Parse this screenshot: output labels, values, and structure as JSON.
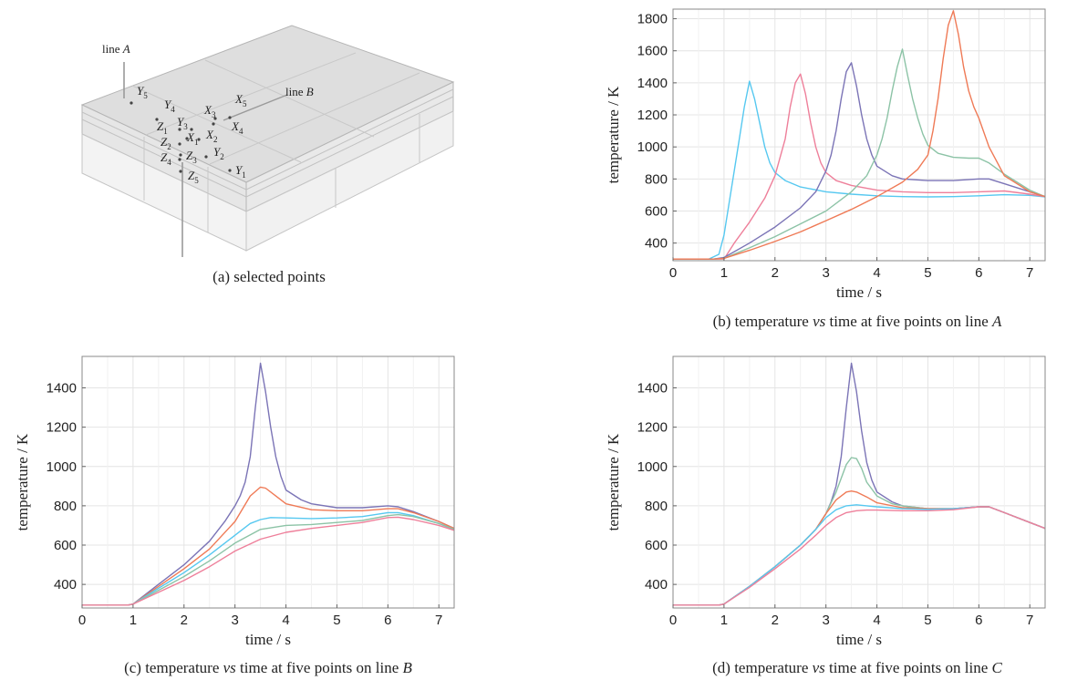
{
  "colors": {
    "cyan": "#56c8f0",
    "pink": "#ee7f9a",
    "purple": "#7b74b6",
    "green": "#8cc3a6",
    "orange": "#ef7a56",
    "grid": "#e4e4e4",
    "frame": "#888888"
  },
  "panel_a": {
    "caption": "(a)  selected points",
    "line_a_label": "line A",
    "line_b_label": "line B",
    "points": [
      {
        "letter": "Y",
        "sub": "5"
      },
      {
        "letter": "Y",
        "sub": "4"
      },
      {
        "letter": "X",
        "sub": "3"
      },
      {
        "letter": "X",
        "sub": "5"
      },
      {
        "letter": "Z",
        "sub": "1"
      },
      {
        "letter": "Y",
        "sub": "3"
      },
      {
        "letter": "X",
        "sub": "4"
      },
      {
        "letter": "X",
        "sub": "1"
      },
      {
        "letter": "X",
        "sub": "2"
      },
      {
        "letter": "Z",
        "sub": "2"
      },
      {
        "letter": "Y",
        "sub": "2"
      },
      {
        "letter": "Z",
        "sub": "4"
      },
      {
        "letter": "Z",
        "sub": "3"
      },
      {
        "letter": "Y",
        "sub": "1"
      },
      {
        "letter": "Z",
        "sub": "5"
      }
    ]
  },
  "chart_data": [
    {
      "id": "b",
      "type": "line",
      "caption_pre": "(b) temperature ",
      "caption_vs": "vs",
      "caption_mid": " time at five points on line ",
      "caption_line": "A",
      "xlabel": "time / s",
      "ylabel": "temperature / K",
      "xlim": [
        0,
        7.3
      ],
      "ylim": [
        290,
        1860
      ],
      "xticks": [
        0,
        1,
        2,
        3,
        4,
        5,
        6,
        7
      ],
      "yticks": [
        400,
        600,
        800,
        1000,
        1200,
        1400,
        1600,
        1800
      ],
      "grid": true,
      "series": [
        {
          "color": "cyan",
          "x": [
            0,
            0.7,
            0.9,
            1.0,
            1.1,
            1.2,
            1.3,
            1.4,
            1.5,
            1.6,
            1.7,
            1.8,
            1.9,
            2.0,
            2.2,
            2.5,
            3.0,
            3.5,
            4.0,
            4.5,
            5.0,
            5.5,
            6.0,
            6.5,
            7.0,
            7.3
          ],
          "y": [
            300,
            300,
            330,
            450,
            650,
            850,
            1050,
            1250,
            1410,
            1300,
            1150,
            1000,
            900,
            840,
            790,
            750,
            720,
            705,
            695,
            690,
            688,
            690,
            695,
            702,
            698,
            688
          ]
        },
        {
          "color": "pink",
          "x": [
            0,
            1.0,
            1.2,
            1.5,
            1.8,
            2.0,
            2.2,
            2.3,
            2.4,
            2.5,
            2.6,
            2.7,
            2.8,
            2.9,
            3.0,
            3.2,
            3.5,
            4.0,
            4.5,
            5.0,
            5.5,
            6.0,
            6.5,
            7.0,
            7.3
          ],
          "y": [
            300,
            300,
            400,
            530,
            680,
            820,
            1050,
            1250,
            1400,
            1455,
            1330,
            1150,
            1000,
            900,
            840,
            790,
            760,
            730,
            720,
            715,
            715,
            720,
            725,
            705,
            690
          ]
        },
        {
          "color": "purple",
          "x": [
            0,
            0.8,
            1.0,
            1.5,
            2.0,
            2.5,
            2.8,
            3.0,
            3.1,
            3.2,
            3.3,
            3.4,
            3.5,
            3.6,
            3.7,
            3.8,
            3.9,
            4.0,
            4.3,
            4.5,
            5.0,
            5.5,
            6.0,
            6.2,
            6.5,
            7.0,
            7.3
          ],
          "y": [
            300,
            300,
            310,
            400,
            500,
            620,
            720,
            850,
            950,
            1100,
            1300,
            1470,
            1525,
            1380,
            1200,
            1050,
            950,
            880,
            820,
            800,
            790,
            790,
            800,
            800,
            770,
            720,
            690
          ]
        },
        {
          "color": "green",
          "x": [
            0,
            0.8,
            1.0,
            1.5,
            2.0,
            2.5,
            3.0,
            3.5,
            3.8,
            4.0,
            4.1,
            4.2,
            4.3,
            4.4,
            4.5,
            4.6,
            4.7,
            4.8,
            4.9,
            5.0,
            5.2,
            5.5,
            5.8,
            6.0,
            6.2,
            6.5,
            7.0,
            7.3
          ],
          "y": [
            300,
            300,
            305,
            370,
            440,
            520,
            600,
            720,
            820,
            950,
            1050,
            1180,
            1350,
            1500,
            1610,
            1450,
            1300,
            1180,
            1080,
            1010,
            960,
            935,
            930,
            930,
            900,
            830,
            730,
            690
          ]
        },
        {
          "color": "orange",
          "x": [
            0,
            0.8,
            1.0,
            1.5,
            2.0,
            2.5,
            3.0,
            3.5,
            4.0,
            4.5,
            4.8,
            5.0,
            5.1,
            5.2,
            5.3,
            5.4,
            5.5,
            5.6,
            5.7,
            5.8,
            5.9,
            6.0,
            6.2,
            6.5,
            7.0,
            7.3
          ],
          "y": [
            300,
            300,
            305,
            355,
            410,
            470,
            540,
            610,
            690,
            780,
            860,
            950,
            1100,
            1300,
            1550,
            1760,
            1850,
            1700,
            1500,
            1350,
            1250,
            1180,
            1000,
            820,
            720,
            690
          ]
        }
      ]
    },
    {
      "id": "c",
      "type": "line",
      "caption_pre": "(c) temperature ",
      "caption_vs": "vs",
      "caption_mid": " time at five points on line ",
      "caption_line": "B",
      "xlabel": "time / s",
      "ylabel": "temperature / K",
      "xlim": [
        0,
        7.3
      ],
      "ylim": [
        280,
        1560
      ],
      "xticks": [
        0,
        1,
        2,
        3,
        4,
        5,
        6,
        7
      ],
      "yticks": [
        400,
        600,
        800,
        1000,
        1200,
        1400
      ],
      "grid": true,
      "series": [
        {
          "color": "purple",
          "x": [
            0,
            0.9,
            1.0,
            1.5,
            2.0,
            2.5,
            2.8,
            3.0,
            3.1,
            3.2,
            3.3,
            3.4,
            3.5,
            3.6,
            3.7,
            3.8,
            3.9,
            4.0,
            4.3,
            4.5,
            5.0,
            5.5,
            6.0,
            6.2,
            6.5,
            7.0,
            7.3
          ],
          "y": [
            295,
            295,
            300,
            400,
            500,
            620,
            720,
            800,
            850,
            920,
            1050,
            1300,
            1525,
            1380,
            1200,
            1050,
            950,
            880,
            830,
            810,
            790,
            790,
            800,
            795,
            770,
            720,
            685
          ]
        },
        {
          "color": "orange",
          "x": [
            0,
            0.9,
            1.0,
            1.5,
            2.0,
            2.5,
            3.0,
            3.3,
            3.5,
            3.6,
            3.8,
            4.0,
            4.5,
            5.0,
            5.5,
            6.0,
            6.2,
            6.5,
            7.0,
            7.3
          ],
          "y": [
            295,
            295,
            300,
            390,
            480,
            580,
            720,
            850,
            895,
            890,
            850,
            810,
            780,
            775,
            775,
            785,
            785,
            765,
            720,
            685
          ]
        },
        {
          "color": "cyan",
          "x": [
            0,
            0.9,
            1.0,
            1.5,
            2.0,
            2.5,
            3.0,
            3.3,
            3.5,
            3.7,
            4.0,
            4.5,
            5.0,
            5.5,
            6.0,
            6.2,
            6.5,
            7.0,
            7.3
          ],
          "y": [
            295,
            295,
            300,
            380,
            460,
            550,
            650,
            710,
            730,
            740,
            738,
            735,
            738,
            745,
            765,
            765,
            750,
            710,
            680
          ]
        },
        {
          "color": "green",
          "x": [
            0,
            0.9,
            1.0,
            1.5,
            2.0,
            2.5,
            3.0,
            3.5,
            4.0,
            4.5,
            5.0,
            5.5,
            6.0,
            6.2,
            6.5,
            7.0,
            7.3
          ],
          "y": [
            295,
            295,
            300,
            370,
            440,
            520,
            610,
            680,
            700,
            705,
            715,
            725,
            750,
            755,
            745,
            710,
            680
          ]
        },
        {
          "color": "pink",
          "x": [
            0,
            0.9,
            1.0,
            1.5,
            2.0,
            2.5,
            3.0,
            3.5,
            4.0,
            4.5,
            5.0,
            5.5,
            6.0,
            6.2,
            6.5,
            7.0,
            7.3
          ],
          "y": [
            295,
            295,
            300,
            360,
            420,
            490,
            570,
            630,
            665,
            685,
            700,
            715,
            740,
            742,
            730,
            700,
            675
          ]
        }
      ]
    },
    {
      "id": "d",
      "type": "line",
      "caption_pre": "(d) temperature ",
      "caption_vs": "vs",
      "caption_mid": " time at five points on line ",
      "caption_line": "C",
      "xlabel": "time / s",
      "ylabel": "temperature / K",
      "xlim": [
        0,
        7.3
      ],
      "ylim": [
        280,
        1560
      ],
      "xticks": [
        0,
        1,
        2,
        3,
        4,
        5,
        6,
        7
      ],
      "yticks": [
        400,
        600,
        800,
        1000,
        1200,
        1400
      ],
      "grid": true,
      "series": [
        {
          "color": "purple",
          "x": [
            0,
            0.9,
            1.0,
            1.5,
            2.0,
            2.5,
            2.8,
            3.0,
            3.1,
            3.2,
            3.3,
            3.4,
            3.5,
            3.6,
            3.7,
            3.8,
            3.9,
            4.0,
            4.3,
            4.5,
            5.0,
            5.5,
            6.0,
            6.2,
            6.5,
            7.0,
            7.3
          ],
          "y": [
            295,
            295,
            300,
            390,
            490,
            600,
            680,
            760,
            820,
            900,
            1050,
            1300,
            1525,
            1380,
            1180,
            1020,
            930,
            870,
            820,
            800,
            785,
            785,
            795,
            795,
            765,
            715,
            685
          ]
        },
        {
          "color": "green",
          "x": [
            0,
            0.9,
            1.0,
            1.5,
            2.0,
            2.5,
            2.8,
            3.0,
            3.2,
            3.4,
            3.5,
            3.6,
            3.7,
            3.8,
            4.0,
            4.3,
            4.5,
            5.0,
            5.5,
            6.0,
            6.2,
            6.5,
            7.0,
            7.3
          ],
          "y": [
            295,
            295,
            300,
            390,
            490,
            600,
            680,
            760,
            870,
            1010,
            1045,
            1040,
            990,
            920,
            850,
            810,
            800,
            785,
            785,
            795,
            795,
            765,
            715,
            685
          ]
        },
        {
          "color": "orange",
          "x": [
            0,
            0.9,
            1.0,
            1.5,
            2.0,
            2.5,
            2.8,
            3.0,
            3.2,
            3.4,
            3.5,
            3.6,
            3.8,
            4.0,
            4.5,
            5.0,
            5.5,
            6.0,
            6.2,
            6.5,
            7.0,
            7.3
          ],
          "y": [
            295,
            295,
            300,
            390,
            490,
            600,
            680,
            760,
            830,
            870,
            875,
            870,
            845,
            815,
            790,
            785,
            785,
            795,
            795,
            765,
            715,
            685
          ]
        },
        {
          "color": "cyan",
          "x": [
            0,
            0.9,
            1.0,
            1.5,
            2.0,
            2.5,
            2.8,
            3.0,
            3.2,
            3.4,
            3.6,
            3.8,
            4.0,
            4.5,
            5.0,
            5.5,
            6.0,
            6.2,
            6.5,
            7.0,
            7.3
          ],
          "y": [
            295,
            295,
            300,
            390,
            490,
            600,
            680,
            740,
            780,
            800,
            805,
            800,
            795,
            785,
            782,
            785,
            795,
            795,
            765,
            715,
            685
          ]
        },
        {
          "color": "pink",
          "x": [
            0,
            0.9,
            1.0,
            1.5,
            2.0,
            2.5,
            2.8,
            3.0,
            3.2,
            3.4,
            3.6,
            3.8,
            4.0,
            4.5,
            5.0,
            5.5,
            6.0,
            6.2,
            6.5,
            7.0,
            7.3
          ],
          "y": [
            295,
            295,
            300,
            385,
            480,
            580,
            650,
            700,
            740,
            765,
            775,
            778,
            778,
            775,
            775,
            780,
            795,
            795,
            765,
            715,
            685
          ]
        }
      ]
    }
  ]
}
